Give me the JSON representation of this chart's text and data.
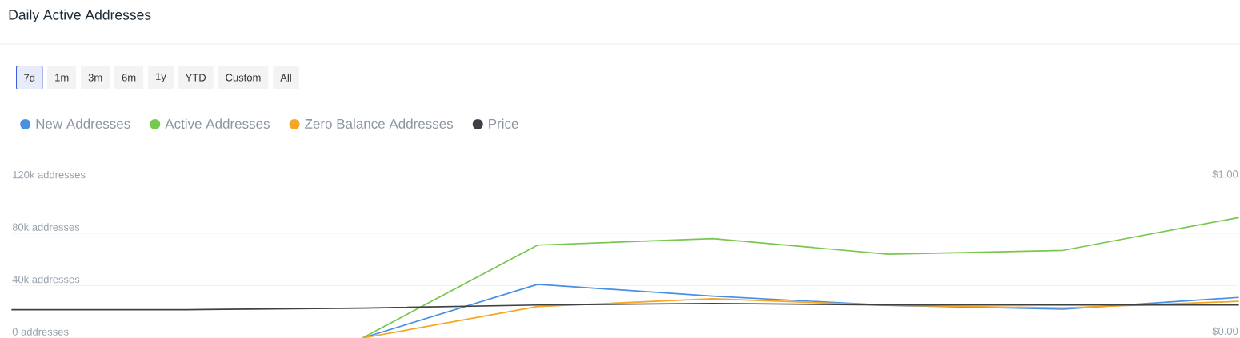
{
  "chart_data": {
    "type": "line",
    "title": "Daily Active Addresses",
    "annotations": [
      "7d",
      "1m",
      "3m",
      "6m",
      "1y",
      "YTD",
      "Custom",
      "All"
    ],
    "categories": [
      null,
      null,
      null,
      null,
      null,
      null,
      null,
      null
    ],
    "series": [
      {
        "name": "New Addresses",
        "color": "#4a90e2",
        "values": [
          null,
          null,
          0,
          41000,
          32000,
          25000,
          22000,
          31000
        ]
      },
      {
        "name": "Active Addresses",
        "color": "#78c850",
        "values": [
          null,
          null,
          0,
          71000,
          76000,
          64000,
          67000,
          92000
        ]
      },
      {
        "name": "Zero Balance Addresses",
        "color": "#f5a623",
        "values": [
          null,
          null,
          0,
          24000,
          30000,
          25000,
          23000,
          28000
        ]
      },
      {
        "name": "Price",
        "color": "#3d4146",
        "axis": "y2",
        "values": [
          0.18,
          0.18,
          0.19,
          0.21,
          0.22,
          0.21,
          0.21,
          0.21
        ]
      }
    ],
    "ylim": [
      0,
      120000
    ],
    "yticks": [
      {
        "value": 0,
        "label": "0 addresses"
      },
      {
        "value": 40000,
        "label": "40k addresses"
      },
      {
        "value": 80000,
        "label": "80k addresses"
      },
      {
        "value": 120000,
        "label": "120k addresses"
      }
    ],
    "y2lim": [
      0,
      1
    ],
    "y2ticks": [
      {
        "value": 0,
        "label": "$0.00"
      },
      {
        "value": 1,
        "label": "$1.00"
      }
    ],
    "grid": "y",
    "legend": "top left"
  }
}
